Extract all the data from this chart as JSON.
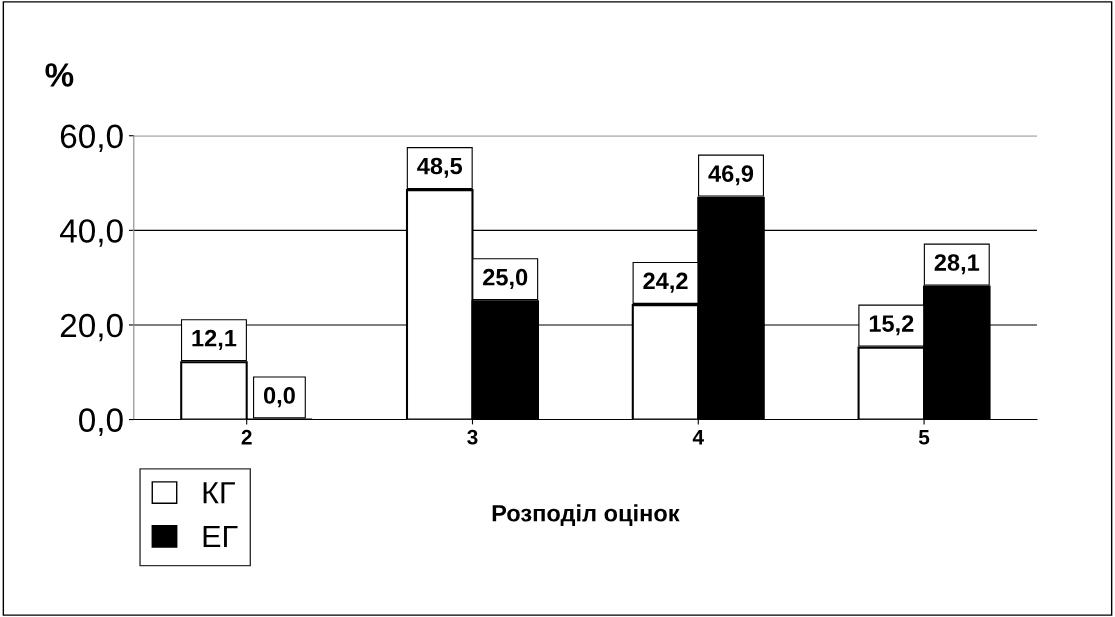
{
  "chart_data": {
    "type": "bar",
    "ylabel": "%",
    "xlabel": "Розподіл оцінок",
    "categories": [
      "2",
      "3",
      "4",
      "5"
    ],
    "series": [
      {
        "name": "КГ",
        "color": "#ffffff",
        "values": [
          12.1,
          48.5,
          24.2,
          15.2
        ],
        "value_labels": [
          "12,1",
          "48,5",
          "24,2",
          "15,2"
        ]
      },
      {
        "name": "ЕГ",
        "color": "#000000",
        "values": [
          0.0,
          25.0,
          46.9,
          28.1
        ],
        "value_labels": [
          "0,0",
          "25,0",
          "46,9",
          "28,1"
        ]
      }
    ],
    "ylim": [
      0,
      60
    ],
    "yticks": [
      {
        "value": 0,
        "label": "0,0"
      },
      {
        "value": 20,
        "label": "20,0"
      },
      {
        "value": 40,
        "label": "40,0"
      },
      {
        "value": 60,
        "label": "60,0"
      }
    ],
    "grid": "y",
    "legend": "bottom left"
  }
}
